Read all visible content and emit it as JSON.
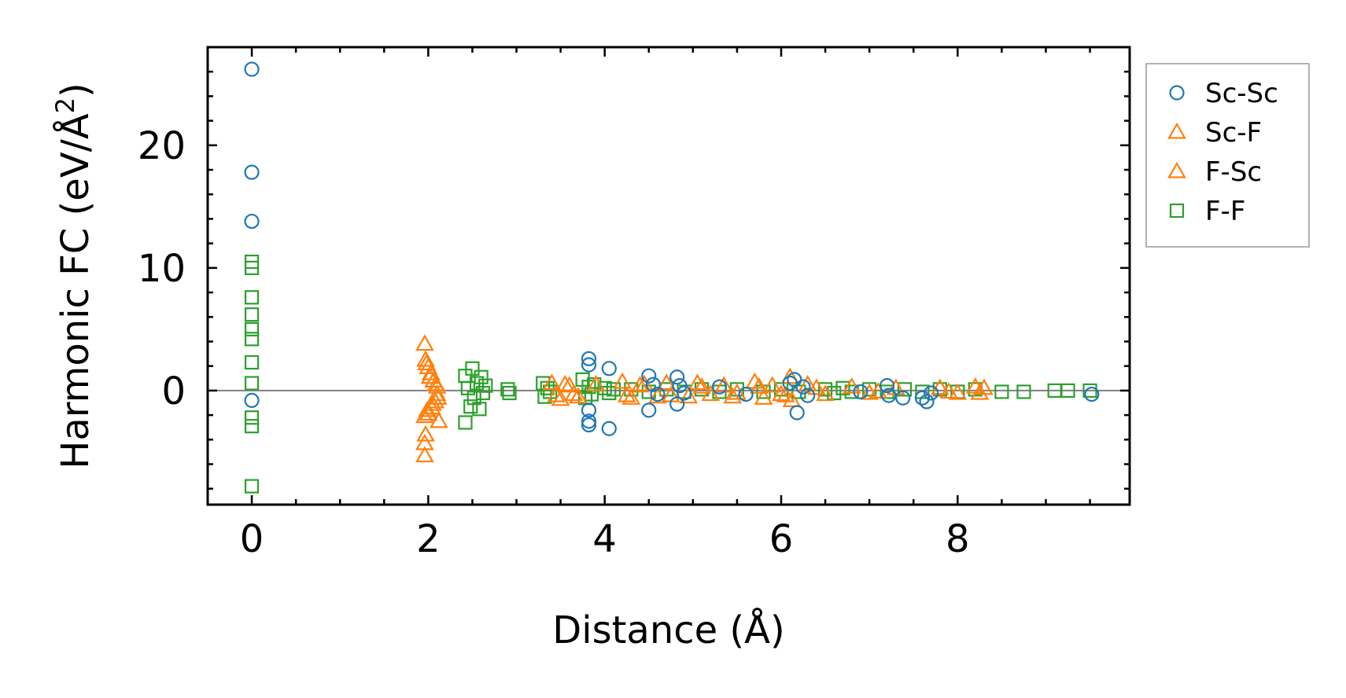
{
  "chart_data": {
    "type": "scatter",
    "xlabel": "Distance (Å)",
    "ylabel_main": "Harmonic FC (eV/Å",
    "ylabel_sup": "2",
    "ylabel_close": ")",
    "xlim": [
      -0.5,
      9.95
    ],
    "ylim": [
      -9.3,
      28
    ],
    "xticks": [
      0,
      2,
      4,
      6,
      8
    ],
    "yticks": [
      0,
      10,
      20
    ],
    "xticklabels": [
      "0",
      "2",
      "4",
      "6",
      "8"
    ],
    "yticklabels": [
      "0",
      "10",
      "20"
    ],
    "x_minor_step": 0.5,
    "y_minor_step": 2,
    "zero_line": true,
    "grid": false,
    "legend_position": "outside-right-top",
    "series": [
      {
        "name": "Sc-Sc",
        "marker": "circle",
        "color": "#1f77b4",
        "points": [
          [
            0,
            26.2
          ],
          [
            0,
            17.8
          ],
          [
            0,
            13.8
          ],
          [
            0,
            -0.8
          ],
          [
            3.82,
            2.6
          ],
          [
            3.82,
            2.1
          ],
          [
            3.82,
            -1.6
          ],
          [
            3.82,
            -2.5
          ],
          [
            3.82,
            -2.8
          ],
          [
            4.05,
            1.8
          ],
          [
            4.05,
            -3.1
          ],
          [
            4.5,
            1.2
          ],
          [
            4.5,
            -1.6
          ],
          [
            4.55,
            0.5
          ],
          [
            4.6,
            -0.3
          ],
          [
            4.82,
            1.1
          ],
          [
            4.82,
            -1.1
          ],
          [
            4.85,
            0.4
          ],
          [
            4.9,
            -0.2
          ],
          [
            5.3,
            0.3
          ],
          [
            5.6,
            -0.3
          ],
          [
            6.1,
            0.6
          ],
          [
            6.15,
            0.9
          ],
          [
            6.18,
            -1.8
          ],
          [
            6.25,
            0.3
          ],
          [
            6.3,
            -0.4
          ],
          [
            6.9,
            -0.1
          ],
          [
            7.2,
            0.4
          ],
          [
            7.22,
            -0.4
          ],
          [
            7.38,
            -0.6
          ],
          [
            7.6,
            -0.6
          ],
          [
            7.65,
            -0.9
          ],
          [
            7.7,
            -0.2
          ],
          [
            9.52,
            -0.3
          ]
        ]
      },
      {
        "name": "Sc-F",
        "marker": "triangle",
        "color": "#ff7f0e",
        "points": [
          [
            1.96,
            3.8
          ],
          [
            1.97,
            2.5
          ],
          [
            1.96,
            -2.1
          ],
          [
            1.97,
            -3.6
          ],
          [
            1.96,
            -4.3
          ],
          [
            1.96,
            -5.3
          ],
          [
            2.0,
            1.9
          ],
          [
            2.0,
            -1.9
          ],
          [
            2.02,
            1.1
          ],
          [
            2.04,
            -1.4
          ],
          [
            2.06,
            0.8
          ],
          [
            2.08,
            -0.9
          ],
          [
            2.1,
            0.3
          ],
          [
            2.12,
            -2.5
          ],
          [
            2.1,
            -0.3
          ],
          [
            3.4,
            0.6
          ],
          [
            3.5,
            -0.7
          ],
          [
            3.6,
            0.4
          ],
          [
            3.7,
            -0.5
          ],
          [
            3.9,
            0.5
          ],
          [
            4.2,
            0.7
          ],
          [
            4.3,
            -0.6
          ],
          [
            4.4,
            0.4
          ],
          [
            4.6,
            -0.5
          ],
          [
            4.7,
            0.6
          ],
          [
            4.95,
            -0.5
          ],
          [
            5.05,
            0.6
          ],
          [
            5.2,
            -0.3
          ],
          [
            5.35,
            0.4
          ],
          [
            5.5,
            -0.2
          ],
          [
            5.7,
            0.7
          ],
          [
            5.8,
            -0.6
          ],
          [
            5.9,
            0.4
          ],
          [
            6.0,
            -0.3
          ],
          [
            6.1,
            1.1
          ],
          [
            6.12,
            -0.8
          ],
          [
            6.3,
            0.5
          ],
          [
            6.5,
            -0.3
          ],
          [
            6.8,
            0.3
          ],
          [
            7.0,
            -0.2
          ],
          [
            7.3,
            0.2
          ],
          [
            7.8,
            0.2
          ],
          [
            8.0,
            -0.2
          ],
          [
            8.2,
            0.3
          ],
          [
            8.3,
            0.2
          ]
        ]
      },
      {
        "name": "F-Sc",
        "marker": "triangle",
        "color": "#ff7f0e",
        "points": [
          [
            1.98,
            2.2
          ],
          [
            1.99,
            -1.6
          ],
          [
            2.03,
            1.4
          ],
          [
            2.05,
            -1.1
          ],
          [
            2.09,
            0.5
          ],
          [
            2.11,
            -0.6
          ],
          [
            3.45,
            -0.4
          ],
          [
            3.55,
            0.5
          ],
          [
            3.65,
            -0.3
          ],
          [
            4.25,
            -0.4
          ],
          [
            4.45,
            0.5
          ],
          [
            4.75,
            -0.4
          ],
          [
            5.1,
            0.3
          ],
          [
            5.45,
            -0.5
          ],
          [
            5.75,
            0.3
          ],
          [
            6.05,
            -0.4
          ],
          [
            6.4,
            0.2
          ],
          [
            7.1,
            -0.1
          ],
          [
            7.9,
            -0.1
          ],
          [
            8.25,
            -0.2
          ]
        ]
      },
      {
        "name": "F-F",
        "marker": "square",
        "color": "#2ca02c",
        "points": [
          [
            0,
            10.5
          ],
          [
            0,
            10.0
          ],
          [
            0,
            7.6
          ],
          [
            0,
            6.2
          ],
          [
            0,
            5.0
          ],
          [
            0,
            4.2
          ],
          [
            0,
            2.3
          ],
          [
            0,
            0.6
          ],
          [
            0,
            -2.2
          ],
          [
            0,
            -2.9
          ],
          [
            0,
            -7.8
          ],
          [
            2.42,
            1.2
          ],
          [
            2.42,
            -2.6
          ],
          [
            2.45,
            0.2
          ],
          [
            2.48,
            -1.3
          ],
          [
            2.5,
            1.8
          ],
          [
            2.52,
            -0.6
          ],
          [
            2.55,
            0.6
          ],
          [
            2.58,
            -1.5
          ],
          [
            2.6,
            1.1
          ],
          [
            2.62,
            -0.2
          ],
          [
            2.65,
            0.4
          ],
          [
            2.9,
            0.1
          ],
          [
            2.92,
            -0.2
          ],
          [
            3.3,
            0.6
          ],
          [
            3.32,
            -0.5
          ],
          [
            3.35,
            0.2
          ],
          [
            3.38,
            -0.1
          ],
          [
            3.75,
            0.9
          ],
          [
            3.78,
            -0.6
          ],
          [
            3.82,
            0.3
          ],
          [
            3.85,
            -0.3
          ],
          [
            3.88,
            0.5
          ],
          [
            4.0,
            0.2
          ],
          [
            4.05,
            -0.2
          ],
          [
            4.1,
            0.1
          ],
          [
            4.3,
            0.1
          ],
          [
            4.5,
            -0.1
          ],
          [
            4.7,
            0.1
          ],
          [
            4.9,
            -0.1
          ],
          [
            5.1,
            0.1
          ],
          [
            5.3,
            -0.1
          ],
          [
            5.5,
            0.1
          ],
          [
            5.8,
            -0.1
          ],
          [
            6.0,
            0.1
          ],
          [
            6.2,
            -0.1
          ],
          [
            6.5,
            0.1
          ],
          [
            6.6,
            -0.2
          ],
          [
            6.7,
            0.2
          ],
          [
            6.8,
            -0.1
          ],
          [
            7.0,
            0.1
          ],
          [
            7.2,
            -0.1
          ],
          [
            7.4,
            0.1
          ],
          [
            7.6,
            -0.1
          ],
          [
            7.8,
            0.1
          ],
          [
            8.0,
            -0.1
          ],
          [
            8.2,
            0.1
          ],
          [
            8.5,
            -0.1
          ],
          [
            8.75,
            -0.1
          ],
          [
            9.1,
            0.0
          ],
          [
            9.25,
            0.0
          ],
          [
            9.5,
            0.0
          ]
        ]
      }
    ]
  }
}
